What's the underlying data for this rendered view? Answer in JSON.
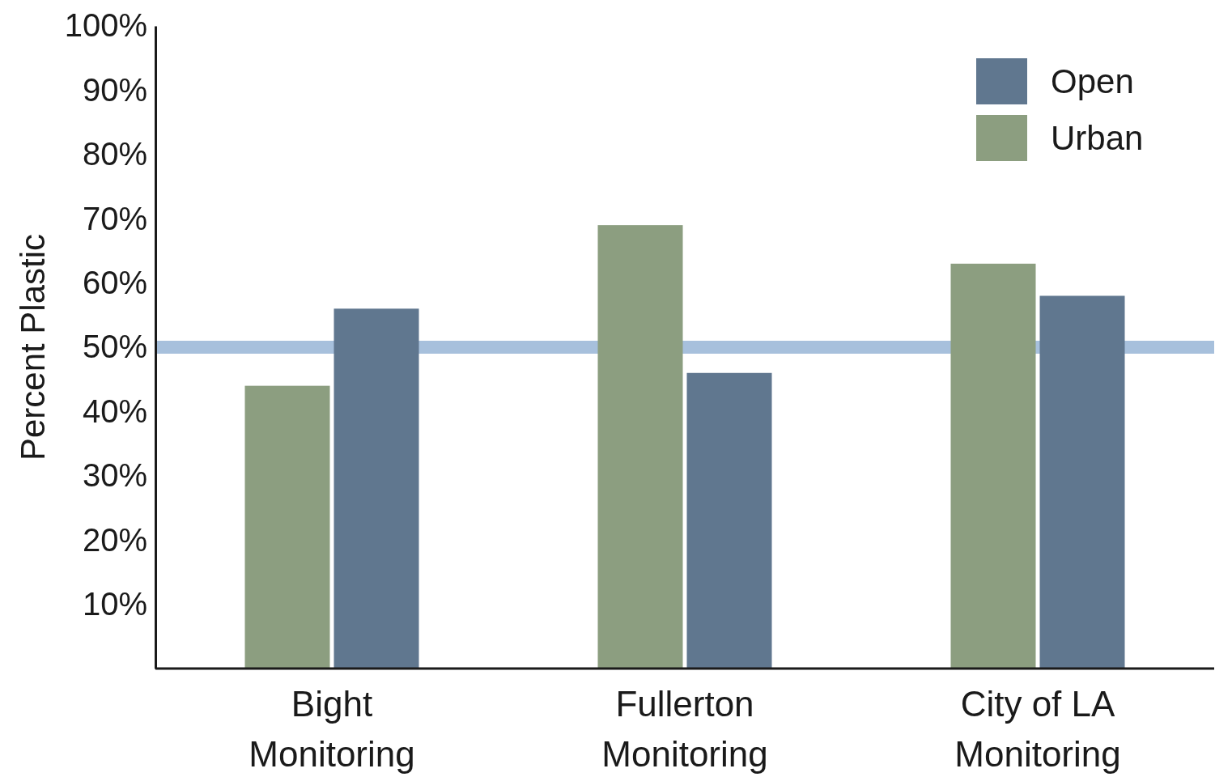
{
  "chart_data": {
    "type": "bar",
    "ylabel": "Percent Plastic",
    "categories": [
      "Bight Monitoring",
      "Fullerton Monitoring",
      "City of LA Monitoring"
    ],
    "series": [
      {
        "name": "Urban",
        "color": "#8c9e80",
        "values": [
          44,
          69,
          63
        ]
      },
      {
        "name": "Open",
        "color": "#60778f",
        "values": [
          56,
          46,
          58
        ]
      }
    ],
    "ylim": [
      0,
      100
    ],
    "yticks": [
      {
        "value": 10,
        "label": "10%"
      },
      {
        "value": 20,
        "label": "20%"
      },
      {
        "value": 30,
        "label": "30%"
      },
      {
        "value": 40,
        "label": "40%"
      },
      {
        "value": 50,
        "label": "50%"
      },
      {
        "value": 60,
        "label": "60%"
      },
      {
        "value": 70,
        "label": "70%"
      },
      {
        "value": 80,
        "label": "80%"
      },
      {
        "value": 90,
        "label": "90%"
      },
      {
        "value": 100,
        "label": "100%"
      }
    ],
    "ref_lines": [
      {
        "axis": "y",
        "value": 50,
        "color": "#a7c0dc"
      }
    ],
    "legend": "top right",
    "grid": false
  }
}
